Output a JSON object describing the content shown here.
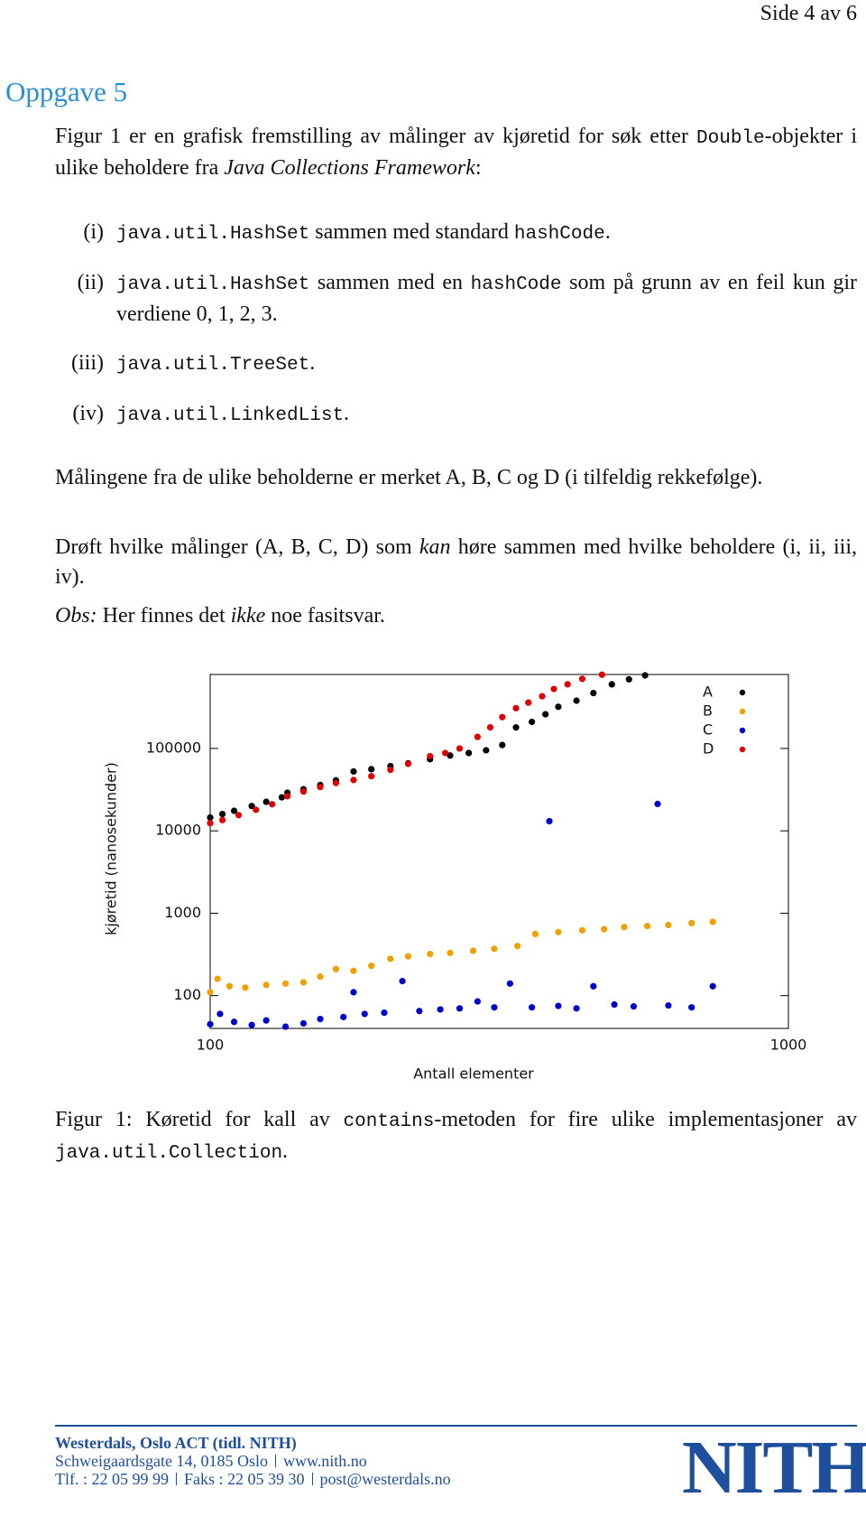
{
  "header": {
    "page": "Side 4 av 6"
  },
  "heading": "Oppgave 5",
  "intro": [
    "Figur 1 er en grafisk fremstilling av målinger av kjøretid for søk etter ",
    "Double",
    "-objekter i ulike beholdere fra ",
    "Java Collections Framework",
    ":"
  ],
  "list": [
    {
      "label": "(i)",
      "text": [
        "java.util.HashSet",
        " sammen med standard ",
        "hashCode",
        "."
      ]
    },
    {
      "label": "(ii)",
      "text": [
        "java.util.HashSet",
        " sammen med en ",
        "hashCode",
        " som på grunn av en feil kun gir verdiene ",
        "0, 1, 2, 3",
        "."
      ]
    },
    {
      "label": "(iii)",
      "text": [
        "java.util.TreeSet",
        "."
      ]
    },
    {
      "label": "(iv)",
      "text": [
        "java.util.LinkedList",
        "."
      ]
    }
  ],
  "paragraphs": [
    [
      "Målingene fra de ulike beholderne er merket A, B, C og D (i tilfeldig rekkefølge)."
    ],
    [
      "Drøft hvilke målinger (A, B, C, D) som ",
      "kan",
      " høre sammen med hvilke beholdere (i, ii, iii, iv)."
    ],
    [
      "Obs:",
      " Her finnes det ",
      "ikke",
      " noe fasitsvar."
    ]
  ],
  "chart_data": {
    "type": "scatter",
    "xlabel": "Antall elementer",
    "ylabel": "kjøretid (nanosekunder)",
    "xscale": "log",
    "yscale": "log",
    "xlim": [
      100,
      1000
    ],
    "ylim": [
      40,
      790000
    ],
    "xticks": [
      100,
      1000
    ],
    "yticks": [
      100,
      1000,
      10000,
      100000
    ],
    "grid": false,
    "legend": "upper right",
    "series": [
      {
        "name": "A",
        "color": "#000000",
        "x": [
          100,
          105,
          110,
          118,
          125,
          133,
          136,
          145,
          155,
          165,
          177,
          190,
          205,
          220,
          240,
          260,
          280,
          300,
          320,
          338,
          360,
          380,
          400,
          430,
          460,
          495,
          530,
          565
        ],
        "values": [
          14500,
          16000,
          17500,
          20000,
          22500,
          25500,
          29000,
          32000,
          36000,
          41000,
          52500,
          56000,
          61000,
          66000,
          74000,
          82000,
          88000,
          95000,
          110000,
          180000,
          210000,
          260000,
          320000,
          380000,
          470000,
          600000,
          690000,
          770000
        ]
      },
      {
        "name": "B",
        "color": "#f0a000",
        "x": [
          100,
          103,
          108,
          115,
          125,
          135,
          145,
          155,
          165,
          177,
          190,
          205,
          220,
          240,
          260,
          285,
          310,
          340,
          365,
          400,
          440,
          480,
          520,
          570,
          620,
          680,
          740
        ],
        "values": [
          110,
          160,
          130,
          125,
          135,
          140,
          145,
          170,
          210,
          200,
          230,
          280,
          300,
          320,
          330,
          350,
          370,
          400,
          560,
          590,
          620,
          640,
          680,
          700,
          720,
          760,
          786
        ]
      },
      {
        "name": "C",
        "color": "#0000cc",
        "x": [
          100,
          104,
          110,
          118,
          125,
          135,
          145,
          155,
          170,
          177,
          185,
          200,
          215,
          230,
          250,
          270,
          290,
          310,
          330,
          360,
          386,
          400,
          430,
          460,
          500,
          540,
          594,
          620,
          680,
          740
        ],
        "values": [
          45,
          60,
          48,
          44,
          50,
          42,
          46,
          52,
          55,
          110,
          60,
          62,
          150,
          65,
          68,
          70,
          85,
          72,
          140,
          72,
          13100,
          75,
          70,
          130,
          78,
          74,
          21200,
          76,
          72,
          130
        ]
      },
      {
        "name": "D",
        "color": "#e00000",
        "x": [
          100,
          105,
          112,
          120,
          128,
          136,
          145,
          155,
          165,
          177,
          190,
          205,
          220,
          240,
          255,
          270,
          290,
          305,
          320,
          338,
          355,
          375,
          393,
          415,
          440,
          476
        ],
        "values": [
          12400,
          13500,
          15500,
          18000,
          21000,
          26300,
          30000,
          34000,
          38000,
          41400,
          46000,
          55000,
          65000,
          80700,
          88000,
          100000,
          138000,
          180000,
          240000,
          308000,
          360000,
          430000,
          527000,
          600000,
          700000,
          785000
        ]
      }
    ]
  },
  "caption": [
    "Figur 1: Køretid for kall av ",
    "contains",
    "-metoden for fire ulike implementasjoner av ",
    "java.util.Collection",
    "."
  ],
  "footer": {
    "org": "Westerdals, Oslo ACT (tidl. NITH)",
    "address": "Schweigaardsgate 14, 0185 Oslo",
    "web": "www.nith.no",
    "phone": "Tlf. : 22 05 99 99",
    "fax": "Faks : 22 05 39 30",
    "email": "post@westerdals.no",
    "logo": "NITH"
  }
}
